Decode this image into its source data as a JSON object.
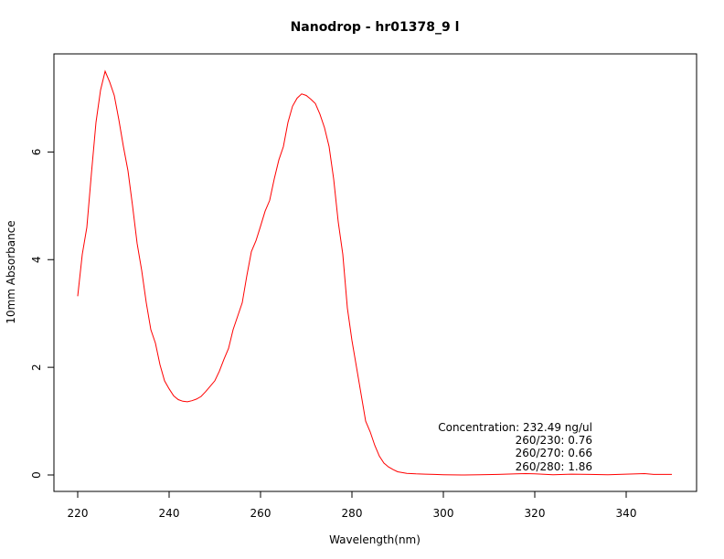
{
  "chart_data": {
    "type": "line",
    "title": "Nanodrop - hr01378_9 l",
    "xlabel": "Wavelength(nm)",
    "ylabel": "10mm Absorbance",
    "xlim": [
      220,
      350
    ],
    "ylim": [
      0,
      7.5
    ],
    "x_ticks": [
      220,
      240,
      260,
      280,
      300,
      320,
      340
    ],
    "y_ticks": [
      0,
      2,
      4,
      6
    ],
    "grid": false,
    "legend": "none",
    "series": [
      {
        "color": "#ff0000",
        "x": [
          220,
          221,
          222,
          223,
          224,
          225,
          226,
          227,
          228,
          229,
          230,
          231,
          232,
          233,
          234,
          235,
          236,
          237,
          238,
          239,
          240,
          241,
          242,
          243,
          244,
          245,
          246,
          247,
          248,
          249,
          250,
          251,
          252,
          253,
          254,
          255,
          256,
          257,
          258,
          259,
          260,
          261,
          262,
          263,
          264,
          265,
          266,
          267,
          268,
          269,
          270,
          271,
          272,
          273,
          274,
          275,
          276,
          277,
          278,
          279,
          280,
          281,
          282,
          283,
          284,
          285,
          286,
          287,
          288,
          289,
          290,
          292,
          294,
          296,
          298,
          300,
          304,
          308,
          312,
          316,
          318,
          320,
          324,
          328,
          332,
          336,
          340,
          344,
          346,
          350
        ],
        "y": [
          3.32,
          4.1,
          4.6,
          5.6,
          6.55,
          7.15,
          7.5,
          7.3,
          7.05,
          6.6,
          6.1,
          5.65,
          5.0,
          4.3,
          3.8,
          3.2,
          2.7,
          2.45,
          2.05,
          1.75,
          1.6,
          1.47,
          1.4,
          1.37,
          1.36,
          1.38,
          1.41,
          1.46,
          1.55,
          1.65,
          1.75,
          1.93,
          2.15,
          2.35,
          2.7,
          2.95,
          3.2,
          3.7,
          4.15,
          4.35,
          4.62,
          4.9,
          5.1,
          5.5,
          5.85,
          6.1,
          6.55,
          6.85,
          7.0,
          7.08,
          7.05,
          6.98,
          6.9,
          6.7,
          6.45,
          6.1,
          5.5,
          4.7,
          4.1,
          3.1,
          2.5,
          2.0,
          1.5,
          1.0,
          0.8,
          0.55,
          0.35,
          0.22,
          0.15,
          0.1,
          0.06,
          0.03,
          0.02,
          0.015,
          0.01,
          0.005,
          0.0,
          0.005,
          0.01,
          0.02,
          0.025,
          0.02,
          0.005,
          0.015,
          0.01,
          0.005,
          0.015,
          0.025,
          0.01,
          0.01
        ]
      }
    ],
    "annotations": [
      "Concentration: 232.49 ng/ul",
      "260/230: 0.76",
      "260/270: 0.66",
      "260/280: 1.86"
    ]
  }
}
